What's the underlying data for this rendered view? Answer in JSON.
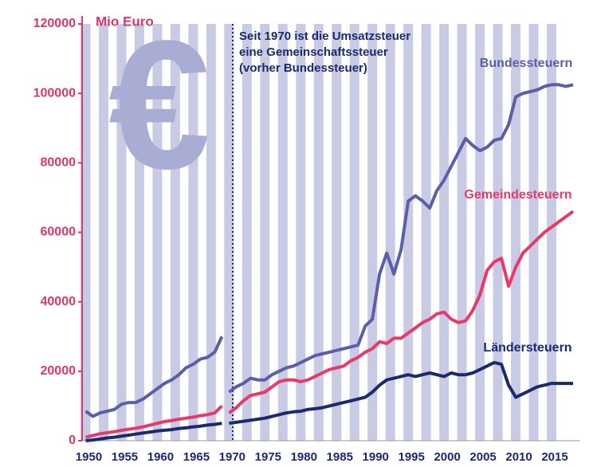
{
  "chart_data": {
    "type": "line",
    "unit_label": "Mio Euro",
    "symbol": "€",
    "annotation": [
      "Seit 1970 ist die Umsatzsteuer",
      "eine Gemeinschaftssteuer",
      "(vorher Bundessteuer)"
    ],
    "x": [
      1950,
      1951,
      1952,
      1953,
      1954,
      1955,
      1956,
      1957,
      1958,
      1959,
      1960,
      1961,
      1962,
      1963,
      1964,
      1965,
      1966,
      1967,
      1968,
      1969,
      null,
      1970,
      1971,
      1972,
      1973,
      1974,
      1975,
      1976,
      1977,
      1978,
      1979,
      1980,
      1981,
      1982,
      1983,
      1984,
      1985,
      1986,
      1987,
      1988,
      1989,
      1990,
      1991,
      1992,
      1993,
      1994,
      1995,
      1996,
      1997,
      1998,
      1999,
      2000,
      2001,
      2002,
      2003,
      2004,
      2005,
      2006,
      2007,
      2008,
      2009,
      2010,
      2011,
      2012,
      2013,
      2014,
      2015,
      2016,
      2017,
      2018
    ],
    "series": [
      {
        "name": "Bundessteuern",
        "color": "#5a60a8",
        "values": [
          8500,
          7000,
          8000,
          8500,
          9000,
          10500,
          11000,
          11000,
          12000,
          13500,
          15000,
          16500,
          17500,
          19000,
          21000,
          22000,
          23500,
          24000,
          25500,
          30000,
          null,
          14000,
          15500,
          16500,
          18000,
          17500,
          17500,
          19000,
          20000,
          21000,
          21500,
          22500,
          23500,
          24500,
          25000,
          25500,
          26000,
          26500,
          27000,
          27500,
          33000,
          35000,
          48000,
          54000,
          48000,
          55000,
          69000,
          70500,
          69000,
          67000,
          72000,
          75000,
          79000,
          83000,
          87000,
          85000,
          83500,
          84500,
          86500,
          87000,
          91000,
          99000,
          100000,
          100500,
          101000,
          102000,
          102500,
          102500,
          102000,
          102500
        ]
      },
      {
        "name": "Gemeindesteuern",
        "color": "#e8396b",
        "values": [
          1000,
          1500,
          2000,
          2300,
          2600,
          3000,
          3300,
          3600,
          4000,
          4500,
          5000,
          5500,
          5800,
          6200,
          6500,
          6800,
          7200,
          7500,
          8000,
          10000,
          null,
          8000,
          9500,
          11500,
          13000,
          13500,
          14000,
          15500,
          17000,
          17500,
          17500,
          17000,
          17500,
          18500,
          19500,
          20500,
          21000,
          21500,
          23000,
          24000,
          25500,
          26500,
          28500,
          28000,
          29500,
          29500,
          31000,
          32500,
          34000,
          35000,
          36500,
          37000,
          35000,
          34000,
          34500,
          37500,
          42000,
          49000,
          51500,
          52500,
          44500,
          50000,
          54000,
          56000,
          58000,
          60000,
          61500,
          63000,
          64500,
          66000
        ]
      },
      {
        "name": "Ländersteuern",
        "color": "#1a2a6c",
        "values": [
          0,
          200,
          500,
          800,
          1000,
          1300,
          1600,
          1900,
          2200,
          2500,
          2800,
          3000,
          3200,
          3500,
          3700,
          4000,
          4200,
          4500,
          4700,
          5000,
          null,
          5000,
          5300,
          5600,
          5900,
          6200,
          6500,
          7000,
          7500,
          8000,
          8300,
          8500,
          9000,
          9200,
          9500,
          10000,
          10500,
          11000,
          11500,
          12000,
          12500,
          14000,
          16000,
          17500,
          18000,
          18500,
          19000,
          18500,
          19000,
          19500,
          19000,
          18500,
          19500,
          19000,
          19000,
          19500,
          20500,
          21500,
          22500,
          22000,
          16000,
          12500,
          13500,
          14500,
          15500,
          16000,
          16500,
          16500,
          16500,
          16500
        ]
      }
    ],
    "xlim": [
      1949.5,
      2019
    ],
    "xticks": [
      1950,
      1955,
      1960,
      1965,
      1970,
      1975,
      1980,
      1985,
      1990,
      1995,
      2000,
      2005,
      2010,
      2015
    ],
    "ylim": [
      0,
      120000
    ],
    "yticks": [
      0,
      20000,
      40000,
      60000,
      80000,
      100000,
      120000
    ],
    "grid": true
  }
}
